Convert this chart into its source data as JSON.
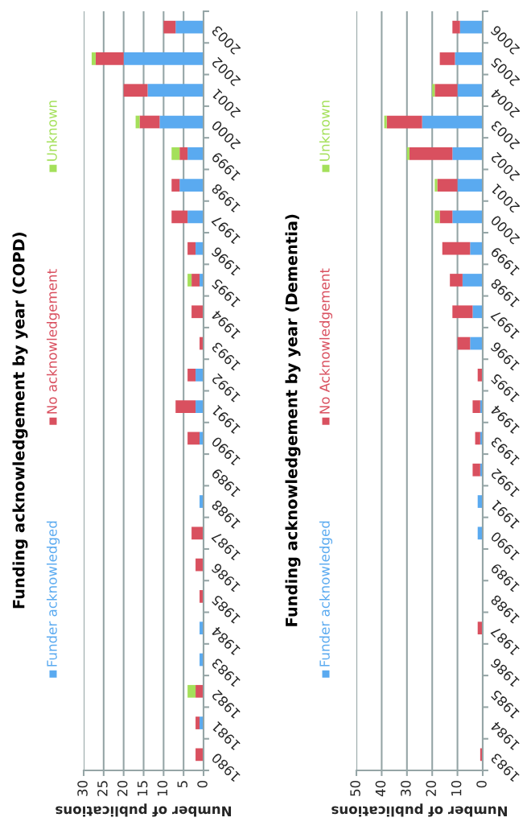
{
  "chart_data": [
    {
      "type": "bar",
      "title": "Funding acknowledgement by year (COPD)",
      "xlabel": "Number of publications",
      "orientation": "horizontal",
      "stacked": true,
      "categories": [
        "2003",
        "2002",
        "2001",
        "2000",
        "1999",
        "1998",
        "1997",
        "1996",
        "1995",
        "1994",
        "1993",
        "1992",
        "1991",
        "1990",
        "1989",
        "1988",
        "1987",
        "1986",
        "1985",
        "1984",
        "1983",
        "1982",
        "1981",
        "1980"
      ],
      "series": [
        {
          "name": "Funder acknowledged",
          "color": "#5aaaf0",
          "values": [
            7,
            20,
            14,
            11,
            4,
            6,
            4,
            2,
            1,
            0,
            0,
            2,
            2,
            1,
            0,
            1,
            0,
            0,
            0,
            1,
            1,
            0,
            1,
            0
          ]
        },
        {
          "name": "No acknowledgement",
          "color": "#d9505f",
          "values": [
            3,
            7,
            6,
            5,
            2,
            2,
            4,
            2,
            2,
            3,
            1,
            2,
            5,
            3,
            0,
            0,
            3,
            2,
            1,
            0,
            0,
            2,
            1,
            2
          ]
        },
        {
          "name": "Unknown",
          "color": "#a4e05a",
          "values": [
            0,
            1,
            0,
            1,
            2,
            0,
            0,
            0,
            1,
            0,
            0,
            0,
            0,
            0,
            0,
            0,
            0,
            0,
            0,
            0,
            0,
            2,
            0,
            0
          ]
        }
      ],
      "xlim": [
        30,
        0
      ],
      "xticks": [
        0,
        5,
        10,
        15,
        20,
        25,
        30
      ],
      "grid": "x",
      "legend": "left"
    },
    {
      "type": "bar",
      "title": "Funding acknowledgement by year (Dementia)",
      "xlabel": "Number of publications",
      "orientation": "horizontal",
      "stacked": true,
      "categories": [
        "2006",
        "2005",
        "2004",
        "2003",
        "2002",
        "2001",
        "2000",
        "1999",
        "1998",
        "1997",
        "1996",
        "1995",
        "1994",
        "1993",
        "1992",
        "1991",
        "1990",
        "1989",
        "1988",
        "1987",
        "1986",
        "1985",
        "1984",
        "1983"
      ],
      "series": [
        {
          "name": "Funder acknowledged",
          "color": "#5aaaf0",
          "values": [
            9,
            11,
            10,
            24,
            12,
            10,
            12,
            5,
            8,
            4,
            5,
            0,
            1,
            1,
            1,
            2,
            2,
            0,
            0,
            0,
            0,
            0,
            0,
            0
          ]
        },
        {
          "name": "No Acknowledgement",
          "color": "#d9505f",
          "values": [
            3,
            6,
            9,
            14,
            17,
            8,
            5,
            11,
            5,
            8,
            5,
            2,
            3,
            2,
            3,
            0,
            0,
            0,
            0,
            2,
            0,
            0,
            0,
            1
          ]
        },
        {
          "name": "Unknown",
          "color": "#a4e05a",
          "values": [
            0,
            0,
            1,
            1,
            1,
            1,
            2,
            0,
            0,
            0,
            0,
            0,
            0,
            0,
            0,
            0,
            0,
            0,
            0,
            0,
            0,
            0,
            0,
            0
          ]
        }
      ],
      "xlim": [
        50,
        0
      ],
      "xticks": [
        0,
        10,
        20,
        30,
        40,
        50
      ],
      "grid": "x",
      "legend": "left"
    }
  ]
}
